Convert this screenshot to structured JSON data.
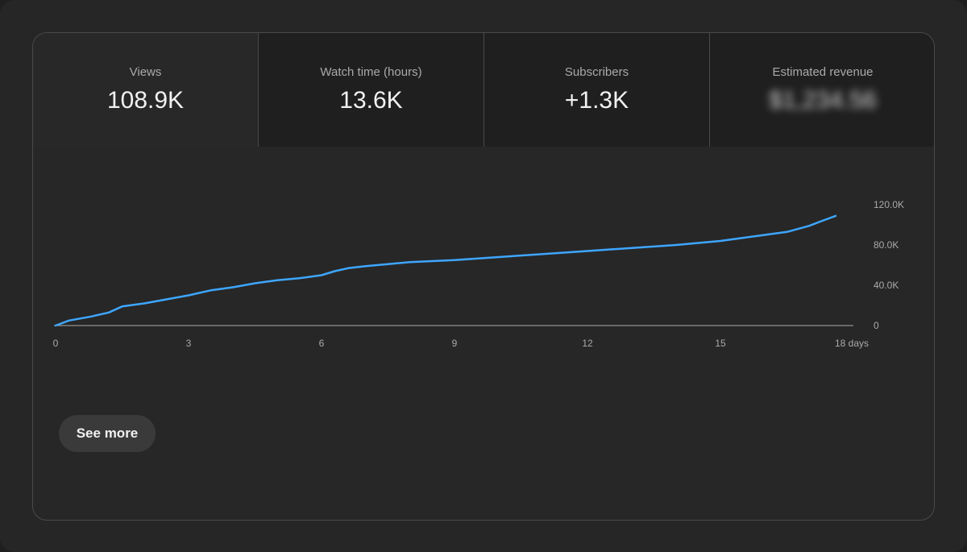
{
  "metrics": [
    {
      "label": "Views",
      "value": "108.9K"
    },
    {
      "label": "Watch time (hours)",
      "value": "13.6K"
    },
    {
      "label": "Subscribers",
      "value": "+1.3K"
    },
    {
      "label": "Estimated revenue",
      "value": "$1,234.56"
    }
  ],
  "see_more_label": "See more",
  "colors": {
    "line": "#3ea6ff",
    "axis": "#aaaaaa"
  },
  "chart_data": {
    "type": "line",
    "title": "Views",
    "xlabel": "days",
    "ylabel": "",
    "xlim": [
      0,
      18
    ],
    "ylim": [
      0,
      120000
    ],
    "x_ticks": [
      0,
      3,
      6,
      9,
      12,
      15,
      18
    ],
    "x_tick_labels": [
      "0",
      "3",
      "6",
      "9",
      "12",
      "15",
      "18 days"
    ],
    "y_ticks": [
      0,
      40000,
      80000,
      120000
    ],
    "y_tick_labels": [
      "0",
      "40.0K",
      "80.0K",
      "120.0K"
    ],
    "series": [
      {
        "name": "Views",
        "x": [
          0,
          0.3,
          0.8,
          1.2,
          1.5,
          2.0,
          2.5,
          3.0,
          3.5,
          4.0,
          4.5,
          5.0,
          5.5,
          6.0,
          6.3,
          6.6,
          7.0,
          7.5,
          8.0,
          9.0,
          10.0,
          11.0,
          12.0,
          13.0,
          14.0,
          14.5,
          15.0,
          15.5,
          16.0,
          16.5,
          17.0,
          17.3,
          17.6
        ],
        "values": [
          0,
          5000,
          9000,
          13000,
          19000,
          22000,
          26000,
          30000,
          35000,
          38000,
          42000,
          45000,
          47000,
          50000,
          54000,
          57000,
          59000,
          61000,
          63000,
          65000,
          68000,
          71000,
          74000,
          77000,
          80000,
          82000,
          84000,
          87000,
          90000,
          93000,
          99000,
          104000,
          108900
        ]
      }
    ]
  }
}
